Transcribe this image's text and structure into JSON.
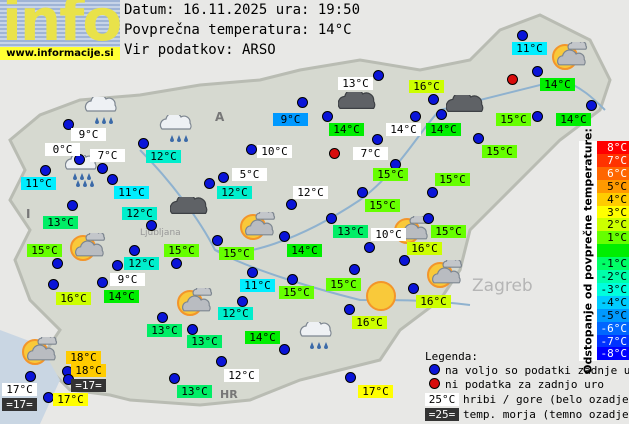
{
  "header": {
    "logo_text": "info",
    "logo_url": "www.informacije.si",
    "date_line": "Datum: 16.11.2025 ura: 19:50",
    "avg_line": "Povprečna temperatura: 14°C",
    "source_line": "Vir podatkov: ARSO"
  },
  "map_labels": [
    "A",
    "I",
    "HR",
    "Zagreb",
    "Ljubljana"
  ],
  "stations": [
    {
      "temp": "13°C",
      "kind": "hill"
    },
    {
      "temp": "16°C",
      "kind": "normal"
    },
    {
      "temp": "11°C",
      "kind": "normal"
    },
    {
      "temp": "14°C",
      "kind": "normal"
    },
    {
      "temp": "14°C",
      "kind": "normal"
    },
    {
      "temp": "14°C",
      "kind": "hill"
    },
    {
      "temp": "14°C",
      "kind": "normal"
    },
    {
      "temp": "15°C",
      "kind": "normal"
    },
    {
      "temp": "14°C",
      "kind": "normal"
    },
    {
      "temp": "7°C",
      "kind": "hill"
    },
    {
      "temp": "15°C",
      "kind": "normal"
    },
    {
      "temp": "15°C",
      "kind": "normal"
    },
    {
      "temp": "15°C",
      "kind": "normal"
    },
    {
      "temp": "15°C",
      "kind": "normal"
    },
    {
      "temp": "13°C",
      "kind": "normal"
    },
    {
      "temp": "15°C",
      "kind": "normal"
    },
    {
      "temp": "10°C",
      "kind": "hill"
    },
    {
      "temp": "16°C",
      "kind": "normal"
    },
    {
      "temp": "15°C",
      "kind": "normal"
    },
    {
      "temp": "16°C",
      "kind": "normal"
    },
    {
      "temp": "16°C",
      "kind": "normal"
    },
    {
      "temp": "9°C",
      "kind": "hill"
    },
    {
      "temp": "0°C",
      "kind": "hill"
    },
    {
      "temp": "7°C",
      "kind": "hill"
    },
    {
      "temp": "11°C",
      "kind": "normal"
    },
    {
      "temp": "11°C",
      "kind": "normal"
    },
    {
      "temp": "12°C",
      "kind": "normal"
    },
    {
      "temp": "12°C",
      "kind": "normal"
    },
    {
      "temp": "13°C",
      "kind": "normal"
    },
    {
      "temp": "9°C",
      "kind": "normal"
    },
    {
      "temp": "10°C",
      "kind": "hill"
    },
    {
      "temp": "5°C",
      "kind": "hill"
    },
    {
      "temp": "12°C",
      "kind": "normal"
    },
    {
      "temp": "12°C",
      "kind": "hill"
    },
    {
      "temp": "15°C",
      "kind": "normal"
    },
    {
      "temp": "12°C",
      "kind": "normal"
    },
    {
      "temp": "9°C",
      "kind": "hill"
    },
    {
      "temp": "16°C",
      "kind": "normal"
    },
    {
      "temp": "14°C",
      "kind": "normal"
    },
    {
      "temp": "15°C",
      "kind": "normal"
    },
    {
      "temp": "15°C",
      "kind": "normal"
    },
    {
      "temp": "14°C",
      "kind": "normal"
    },
    {
      "temp": "11°C",
      "kind": "normal"
    },
    {
      "temp": "15°C",
      "kind": "normal"
    },
    {
      "temp": "12°C",
      "kind": "normal"
    },
    {
      "temp": "13°C",
      "kind": "normal"
    },
    {
      "temp": "13°C",
      "kind": "normal"
    },
    {
      "temp": "14°C",
      "kind": "normal"
    },
    {
      "temp": "18°C",
      "kind": "normal"
    },
    {
      "temp": "18°C",
      "kind": "normal"
    },
    {
      "temp": "=17=",
      "kind": "sea"
    },
    {
      "temp": "17°C",
      "kind": "hill"
    },
    {
      "temp": "=17=",
      "kind": "sea"
    },
    {
      "temp": "17°C",
      "kind": "normal"
    },
    {
      "temp": "13°C",
      "kind": "normal"
    },
    {
      "temp": "12°C",
      "kind": "hill"
    },
    {
      "temp": "17°C",
      "kind": "normal"
    },
    {
      "temp": "",
      "kind": "no-data"
    },
    {
      "temp": "",
      "kind": "no-data"
    }
  ],
  "temp_colors": {
    "9": "#0099ff",
    "11": "#00eeff",
    "12": "#00eecc",
    "13": "#00ee66",
    "14": "#00ee00",
    "15": "#66ff00",
    "16": "#ccff00",
    "17": "#ffff00",
    "18": "#ffcc00"
  },
  "weather_icons": [
    "rain-cloud",
    "rain-cloud",
    "rain-cloud",
    "shower-cloud",
    "dark-cloud",
    "dark-cloud",
    "dark-cloud",
    "sun-cloud",
    "sun-cloud",
    "sun-cloud",
    "sun-cloud",
    "sun-cloud",
    "sun-cloud",
    "sun-cloud",
    "sun"
  ],
  "scale": {
    "title": "Odstopanje od povprečne temperature:",
    "rows": [
      {
        "label": "8°C",
        "color": "#ff0000",
        "text": "#ffffff"
      },
      {
        "label": "7°C",
        "color": "#ff3300",
        "text": "#ffffff"
      },
      {
        "label": "6°C",
        "color": "#ff6600",
        "text": "#ffffff"
      },
      {
        "label": "5°C",
        "color": "#ff9900",
        "text": "#000000"
      },
      {
        "label": "4°C",
        "color": "#ffcc00",
        "text": "#000000"
      },
      {
        "label": "3°C",
        "color": "#ffff00",
        "text": "#000000"
      },
      {
        "label": "2°C",
        "color": "#ccff00",
        "text": "#000000"
      },
      {
        "label": "1°C",
        "color": "#66ff00",
        "text": "#000000"
      },
      {
        "label": "",
        "color": "#00ee00",
        "text": "#000000"
      },
      {
        "label": "-1°C",
        "color": "#00ff66",
        "text": "#000000"
      },
      {
        "label": "-2°C",
        "color": "#00ffaa",
        "text": "#000000"
      },
      {
        "label": "-3°C",
        "color": "#00ffdd",
        "text": "#000000"
      },
      {
        "label": "-4°C",
        "color": "#00ccff",
        "text": "#000000"
      },
      {
        "label": "-5°C",
        "color": "#0099ff",
        "text": "#000000"
      },
      {
        "label": "-6°C",
        "color": "#0066ff",
        "text": "#ffffff"
      },
      {
        "label": "-7°C",
        "color": "#0033ff",
        "text": "#ffffff"
      },
      {
        "label": "-8°C",
        "color": "#0000ff",
        "text": "#ffffff"
      }
    ]
  },
  "legend": {
    "title": "Legenda:",
    "available": "na voljo so podatki zadnje ure",
    "no_data": "ni podatka za zadnjo uro",
    "hill_sample": "25°C",
    "hill_text": "hribi / gore (belo ozadje)",
    "sea_sample": "=25=",
    "sea_text": "temp. morja (temno ozadje)"
  }
}
